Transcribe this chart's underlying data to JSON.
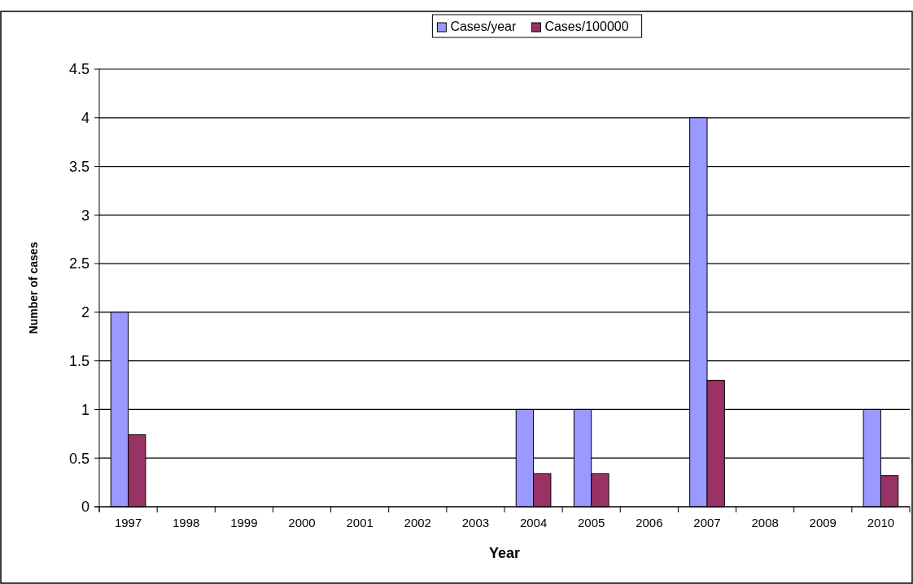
{
  "chart_data": {
    "type": "bar",
    "xlabel": "Year",
    "ylabel": "Number of cases",
    "categories": [
      "1997",
      "1998",
      "1999",
      "2000",
      "2001",
      "2002",
      "2003",
      "2004",
      "2005",
      "2006",
      "2007",
      "2008",
      "2009",
      "2010"
    ],
    "series": [
      {
        "name": "Cases/year",
        "color": "#9999ff",
        "values": [
          2,
          null,
          null,
          null,
          null,
          null,
          null,
          1,
          1,
          null,
          4,
          null,
          null,
          1
        ]
      },
      {
        "name": "Cases/100000",
        "color": "#993366",
        "values": [
          0.74,
          null,
          null,
          null,
          null,
          null,
          null,
          0.34,
          0.34,
          null,
          1.3,
          null,
          null,
          0.32
        ]
      }
    ],
    "ylim": [
      0,
      4.5
    ],
    "yticks": [
      0,
      0.5,
      1,
      1.5,
      2,
      2.5,
      3,
      3.5,
      4,
      4.5
    ],
    "grid": "y",
    "legend": "top"
  }
}
